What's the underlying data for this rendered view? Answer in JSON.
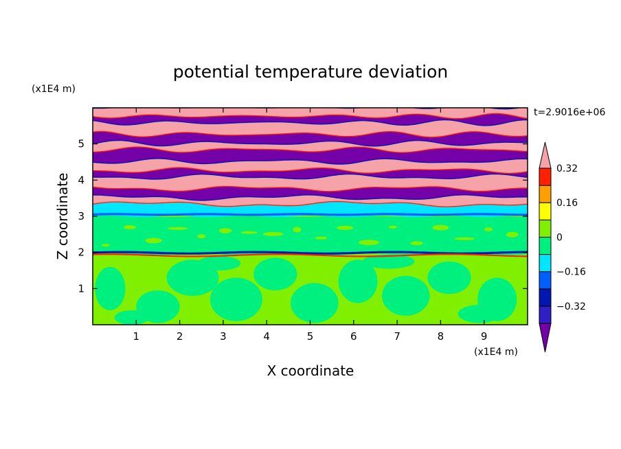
{
  "chart_data": {
    "type": "heatmap",
    "title": "potential temperature deviation",
    "xlabel": "X coordinate",
    "ylabel": "Z coordinate",
    "x_unit": "(x1E4 m)",
    "y_unit": "(x1E4 m)",
    "time_label": "t=2.9016e+06",
    "xlim": [
      0,
      10
    ],
    "ylim": [
      0,
      6
    ],
    "x_ticks": [
      1,
      2,
      3,
      4,
      5,
      6,
      7,
      8,
      9
    ],
    "y_ticks": [
      1,
      2,
      3,
      4,
      5
    ],
    "colorbar": {
      "levels": [
        -0.4,
        -0.32,
        -0.24,
        -0.16,
        -0.08,
        0,
        0.08,
        0.16,
        0.24,
        0.32,
        0.4
      ],
      "labeled_levels": [
        0.32,
        0.16,
        0,
        -0.16,
        -0.32
      ],
      "labels": [
        "0.32",
        "0.16",
        "0",
        "−0.16",
        "−0.32"
      ],
      "colors_low_to_high": [
        "#7400a8",
        "#2f1fc4",
        "#0018b0",
        "#0060ff",
        "#00e6ff",
        "#00f080",
        "#80f000",
        "#ffff00",
        "#ffa000",
        "#ff2000",
        "#f5a3a8"
      ],
      "extend": "both"
    },
    "layers": [
      {
        "z_range": [
          0.0,
          1.9
        ],
        "pattern": "mixed light-green and green patches",
        "colors": [
          "#80f000",
          "#00f080"
        ]
      },
      {
        "z_range": [
          1.9,
          2.1
        ],
        "pattern": "thin dark-blue and red filaments",
        "colors": [
          "#0018b0",
          "#ff2000"
        ]
      },
      {
        "z_range": [
          2.1,
          3.0
        ],
        "pattern": "mostly green with scattered light-green",
        "colors": [
          "#00f080",
          "#80f000"
        ]
      },
      {
        "z_range": [
          3.0,
          3.4
        ],
        "pattern": "cyan and blue band with red/yellow edges",
        "colors": [
          "#00e6ff",
          "#0060ff",
          "#ff2000"
        ]
      },
      {
        "z_range": [
          3.4,
          6.0
        ],
        "pattern": "alternating pink and purple wavy bands with rainbow edges",
        "colors": [
          "#f5a3a8",
          "#7400a8",
          "#2f1fc4"
        ]
      }
    ]
  }
}
